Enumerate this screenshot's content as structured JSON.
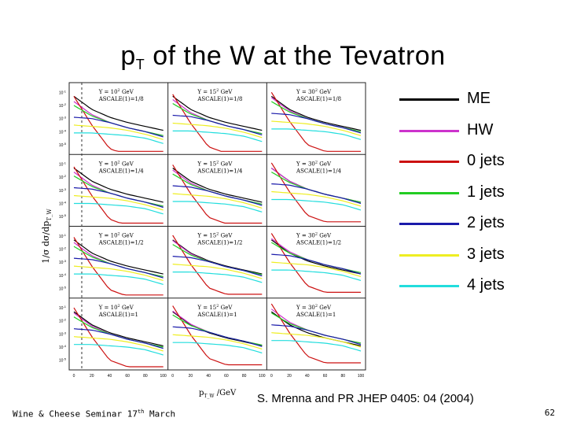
{
  "slide": {
    "title_main": "p",
    "title_sub": "T",
    "title_rest": " of the W at the Tevatron",
    "citation": "S. Mrenna and PR JHEP 0405: 04 (2004)",
    "footer_main": "Wine & Cheese Seminar 17",
    "footer_sup": "th",
    "footer_end": " March",
    "page_number": "62"
  },
  "chart_data": {
    "type": "line",
    "title": "pT of the W at the Tevatron",
    "ylabel": "1/σ dσ/dp",
    "ylabel_sub": "T_W",
    "xlabel": "p",
    "xlabel_sub": "T_W",
    "xlabel_unit": "/GeV",
    "x_ticks": [
      "0",
      "20",
      "40",
      "60",
      "80",
      "100"
    ],
    "y_ticks": [
      "10",
      "10",
      "10",
      "10",
      "10"
    ],
    "y_tick_exponents": [
      "-1",
      "-2",
      "-3",
      "-4",
      "-5"
    ],
    "grid": {
      "rows": 4,
      "cols": 3
    },
    "panels": [
      {
        "ycut_value": "10",
        "ycut_power": "2",
        "ascale": "1/8"
      },
      {
        "ycut_value": "15",
        "ycut_power": "2",
        "ascale": "1/8"
      },
      {
        "ycut_value": "30",
        "ycut_power": "2",
        "ascale": "1/8"
      },
      {
        "ycut_value": "10",
        "ycut_power": "2",
        "ascale": "1/4"
      },
      {
        "ycut_value": "15",
        "ycut_power": "2",
        "ascale": "1/4"
      },
      {
        "ycut_value": "30",
        "ycut_power": "2",
        "ascale": "1/4"
      },
      {
        "ycut_value": "10",
        "ycut_power": "2",
        "ascale": "1/2"
      },
      {
        "ycut_value": "15",
        "ycut_power": "2",
        "ascale": "1/2"
      },
      {
        "ycut_value": "30",
        "ycut_power": "2",
        "ascale": "1/2"
      },
      {
        "ycut_value": "10",
        "ycut_power": "2",
        "ascale": "1"
      },
      {
        "ycut_value": "15",
        "ycut_power": "2",
        "ascale": "1"
      },
      {
        "ycut_value": "30",
        "ycut_power": "2",
        "ascale": "1"
      }
    ],
    "series": [
      {
        "name": "ME",
        "color": "#000000",
        "y_log": [
          -1.3,
          -2.3,
          -2.9,
          -3.3,
          -3.6,
          -3.9
        ]
      },
      {
        "name": "HW",
        "color": "#cc33cc",
        "y_log": [
          -1.4,
          -2.4,
          -3.0,
          -3.4,
          -3.7,
          -4.0
        ]
      },
      {
        "name": "0 jets",
        "color": "#cc1111",
        "y_log": [
          -1.0,
          -3.2,
          -5.0,
          -5.5,
          -5.5,
          -5.5
        ]
      },
      {
        "name": "1 jets",
        "color": "#22cc22",
        "y_log": [
          -1.7,
          -2.5,
          -3.0,
          -3.4,
          -3.7,
          -4.0
        ]
      },
      {
        "name": "2 jets",
        "color": "#1a1aaa",
        "y_log": [
          -2.6,
          -2.7,
          -3.0,
          -3.4,
          -3.7,
          -4.1
        ]
      },
      {
        "name": "3 jets",
        "color": "#eeee22",
        "y_log": [
          -3.2,
          -3.3,
          -3.4,
          -3.6,
          -3.9,
          -4.3
        ]
      },
      {
        "name": "4 jets",
        "color": "#22dddd",
        "y_log": [
          -3.8,
          -3.8,
          -3.9,
          -4.0,
          -4.2,
          -4.6
        ]
      }
    ],
    "x_values": [
      0,
      20,
      40,
      60,
      80,
      100
    ],
    "ylim_log": [
      -5.5,
      -0.5
    ]
  }
}
